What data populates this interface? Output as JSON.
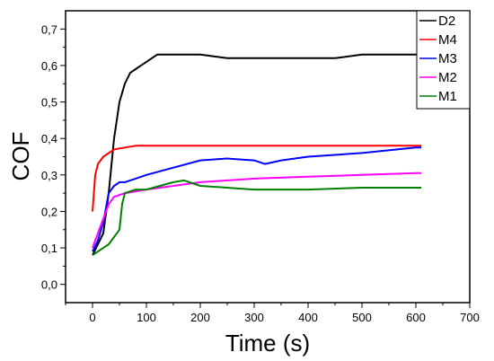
{
  "chart_data": {
    "type": "line",
    "xlabel": "Time (s)",
    "ylabel": "COF",
    "xlim": [
      -50,
      700
    ],
    "ylim": [
      -0.05,
      0.75
    ],
    "xticks": [
      0,
      100,
      200,
      300,
      400,
      500,
      600,
      700
    ],
    "xtick_labels": [
      "0",
      "100",
      "200",
      "300",
      "400",
      "500",
      "600",
      "700"
    ],
    "yticks": [
      0.0,
      0.1,
      0.2,
      0.3,
      0.4,
      0.5,
      0.6,
      0.7
    ],
    "ytick_labels": [
      "0,0",
      "0,1",
      "0,2",
      "0,3",
      "0,4",
      "0,5",
      "0,6",
      "0,7"
    ],
    "legend_position": "top-right",
    "series": [
      {
        "name": "D2",
        "color": "#000000",
        "x": [
          0,
          10,
          20,
          30,
          40,
          50,
          60,
          70,
          80,
          90,
          100,
          120,
          140,
          160,
          200,
          250,
          300,
          350,
          400,
          450,
          500,
          550,
          600,
          610
        ],
        "y": [
          0.08,
          0.11,
          0.14,
          0.25,
          0.4,
          0.5,
          0.55,
          0.58,
          0.59,
          0.6,
          0.61,
          0.63,
          0.63,
          0.63,
          0.63,
          0.62,
          0.62,
          0.62,
          0.62,
          0.62,
          0.63,
          0.63,
          0.63,
          0.63
        ]
      },
      {
        "name": "M4",
        "color": "#ff0000",
        "x": [
          0,
          5,
          10,
          20,
          30,
          40,
          60,
          80,
          100,
          150,
          200,
          300,
          400,
          500,
          600,
          610
        ],
        "y": [
          0.2,
          0.3,
          0.33,
          0.35,
          0.36,
          0.37,
          0.375,
          0.38,
          0.38,
          0.38,
          0.38,
          0.38,
          0.38,
          0.38,
          0.38,
          0.38
        ]
      },
      {
        "name": "M3",
        "color": "#0000ff",
        "x": [
          0,
          10,
          20,
          30,
          40,
          50,
          60,
          80,
          100,
          150,
          200,
          250,
          300,
          320,
          350,
          400,
          500,
          600,
          610
        ],
        "y": [
          0.09,
          0.12,
          0.17,
          0.25,
          0.27,
          0.28,
          0.28,
          0.29,
          0.3,
          0.32,
          0.34,
          0.345,
          0.34,
          0.33,
          0.34,
          0.35,
          0.36,
          0.375,
          0.375
        ]
      },
      {
        "name": "M2",
        "color": "#ff00ff",
        "x": [
          0,
          10,
          20,
          30,
          40,
          60,
          100,
          150,
          200,
          300,
          400,
          500,
          600,
          610
        ],
        "y": [
          0.1,
          0.14,
          0.18,
          0.22,
          0.24,
          0.25,
          0.26,
          0.27,
          0.28,
          0.29,
          0.295,
          0.3,
          0.305,
          0.305
        ]
      },
      {
        "name": "M1",
        "color": "#008000",
        "x": [
          0,
          10,
          20,
          30,
          40,
          50,
          55,
          60,
          80,
          100,
          150,
          170,
          200,
          250,
          300,
          400,
          500,
          600,
          610
        ],
        "y": [
          0.08,
          0.09,
          0.1,
          0.11,
          0.13,
          0.15,
          0.22,
          0.25,
          0.26,
          0.26,
          0.28,
          0.285,
          0.27,
          0.265,
          0.26,
          0.26,
          0.265,
          0.265,
          0.265
        ]
      }
    ]
  }
}
